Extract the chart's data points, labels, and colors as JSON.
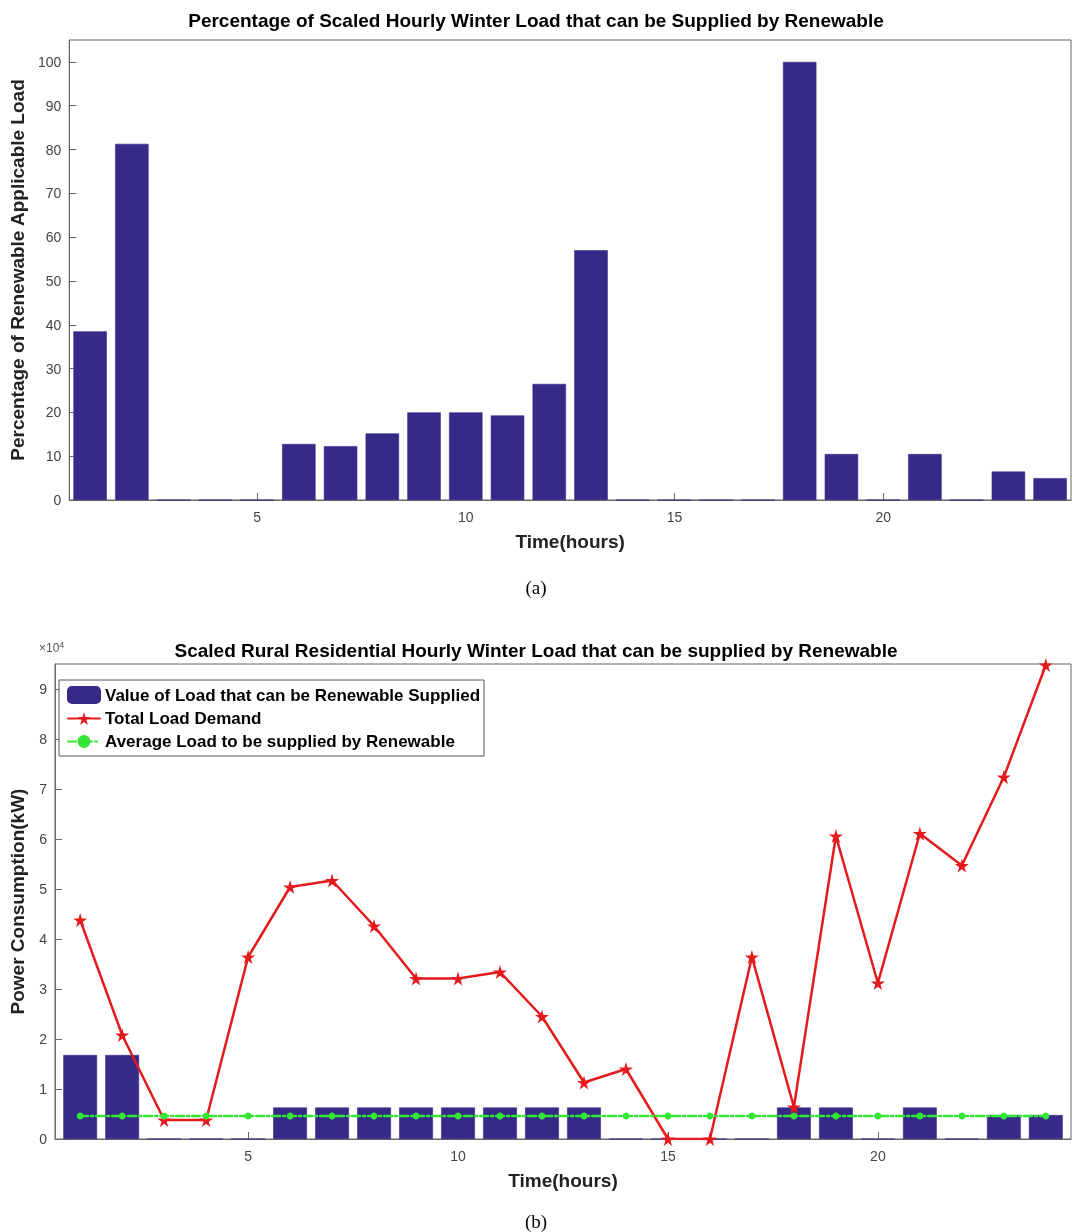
{
  "chart_data": [
    {
      "type": "bar",
      "title": "Percentage of Scaled Hourly Winter Load that can be Supplied by Renewable",
      "xlabel": "Time(hours)",
      "ylabel": "Percentage of Renewable Applicable Load",
      "x": [
        1,
        2,
        3,
        4,
        5,
        6,
        7,
        8,
        9,
        10,
        11,
        12,
        13,
        14,
        15,
        16,
        17,
        18,
        19,
        20,
        21,
        22,
        23,
        24
      ],
      "values": [
        38.5,
        81.3,
        0,
        0,
        0,
        12.8,
        12.3,
        15.2,
        20,
        20,
        19.3,
        26.5,
        57,
        0,
        0,
        0,
        0,
        100,
        10.5,
        0,
        10.5,
        0,
        6.5,
        5
      ],
      "color": "#352a87",
      "xlim": [
        0.5,
        24.5
      ],
      "xticks": [
        5,
        10,
        15,
        20
      ],
      "ylim": [
        0,
        105
      ],
      "yticks": [
        0,
        10,
        20,
        30,
        40,
        50,
        60,
        70,
        80,
        90,
        100
      ],
      "grid": false,
      "annotations": [
        "(a)"
      ]
    },
    {
      "type": "bar",
      "title": "Scaled Rural Residential Hourly Winter Load that can be supplied by Renewable",
      "xlabel": "Time(hours)",
      "ylabel": "Power Consumption(kW)",
      "x": [
        1,
        2,
        3,
        4,
        5,
        6,
        7,
        8,
        9,
        10,
        11,
        12,
        13,
        14,
        15,
        16,
        17,
        18,
        19,
        20,
        21,
        22,
        23,
        24
      ],
      "series": [
        {
          "name": "Value of Load that can be Renewable Supplied",
          "color": "#352a87",
          "values": [
            1.68,
            1.68,
            0,
            0,
            0,
            0.63,
            0.63,
            0.63,
            0.63,
            0.63,
            0.63,
            0.63,
            0.63,
            0,
            0,
            0,
            0,
            0.63,
            0.63,
            0,
            0.63,
            0,
            0.48,
            0.48
          ]
        },
        {
          "name": "Total Load Demand",
          "type": "line",
          "color": "#e41a1c",
          "marker": "star",
          "line_style": "solid",
          "values": [
            4.38,
            2.08,
            0.38,
            0.38,
            3.64,
            5.04,
            5.17,
            4.26,
            3.21,
            3.21,
            3.34,
            2.45,
            1.13,
            1.4,
            0,
            0,
            3.64,
            0.64,
            6.06,
            3.12,
            6.11,
            5.47,
            7.24,
            9.48
          ]
        },
        {
          "name": "Average Load to be supplied by Renewable",
          "type": "line",
          "color": "#33e633",
          "marker": "circle",
          "line_style": "dashed",
          "values": [
            0.46,
            0.46,
            0.46,
            0.46,
            0.46,
            0.46,
            0.46,
            0.46,
            0.46,
            0.46,
            0.46,
            0.46,
            0.46,
            0.46,
            0.46,
            0.46,
            0.46,
            0.46,
            0.46,
            0.46,
            0.46,
            0.46,
            0.46,
            0.46
          ]
        }
      ],
      "xlim": [
        0.4,
        24.6
      ],
      "xticks": [
        5,
        10,
        15,
        20
      ],
      "ylim": [
        0,
        9.5
      ],
      "yticks": [
        0,
        1,
        2,
        3,
        4,
        5,
        6,
        7,
        8,
        9
      ],
      "grid": false,
      "legend": "top left",
      "annotations": [
        "×10$^{4}$",
        "(b)"
      ]
    }
  ]
}
